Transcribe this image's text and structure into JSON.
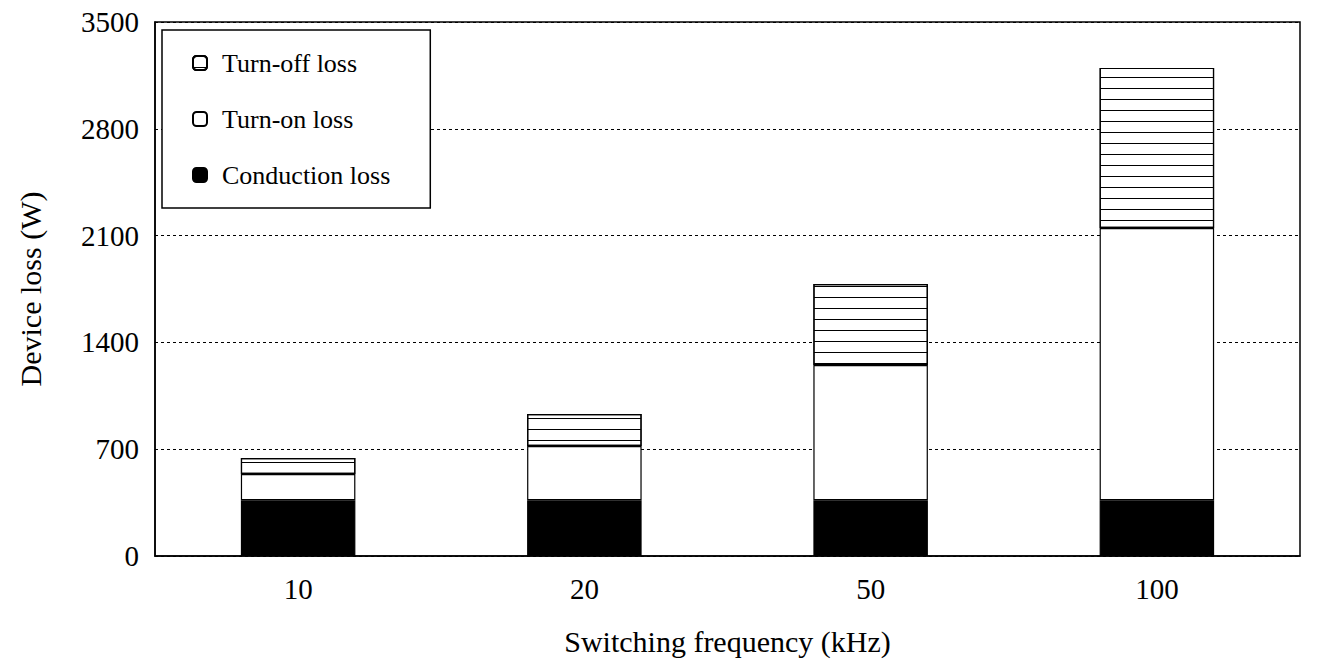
{
  "chart_data": {
    "type": "bar",
    "x_label": "Switching frequency (kHz)",
    "y_label": "Device loss (W)",
    "categories": [
      "10",
      "20",
      "50",
      "100"
    ],
    "series": [
      {
        "name": "Conduction loss",
        "color": "#000000",
        "values": [
          365,
          365,
          365,
          365
        ]
      },
      {
        "name": "Turn-on loss",
        "color": "#ffffff",
        "values": [
          172,
          356,
          887,
          1785
        ]
      },
      {
        "name": "Turn-off loss",
        "color": "#ffffff",
        "values": [
          105,
          210,
          531,
          1049
        ]
      }
    ],
    "stacked": true,
    "ylim": [
      0,
      3500
    ],
    "yticks": [
      0,
      700,
      1400,
      2100,
      2800,
      3500
    ],
    "grid": true,
    "legend": "upper left"
  }
}
